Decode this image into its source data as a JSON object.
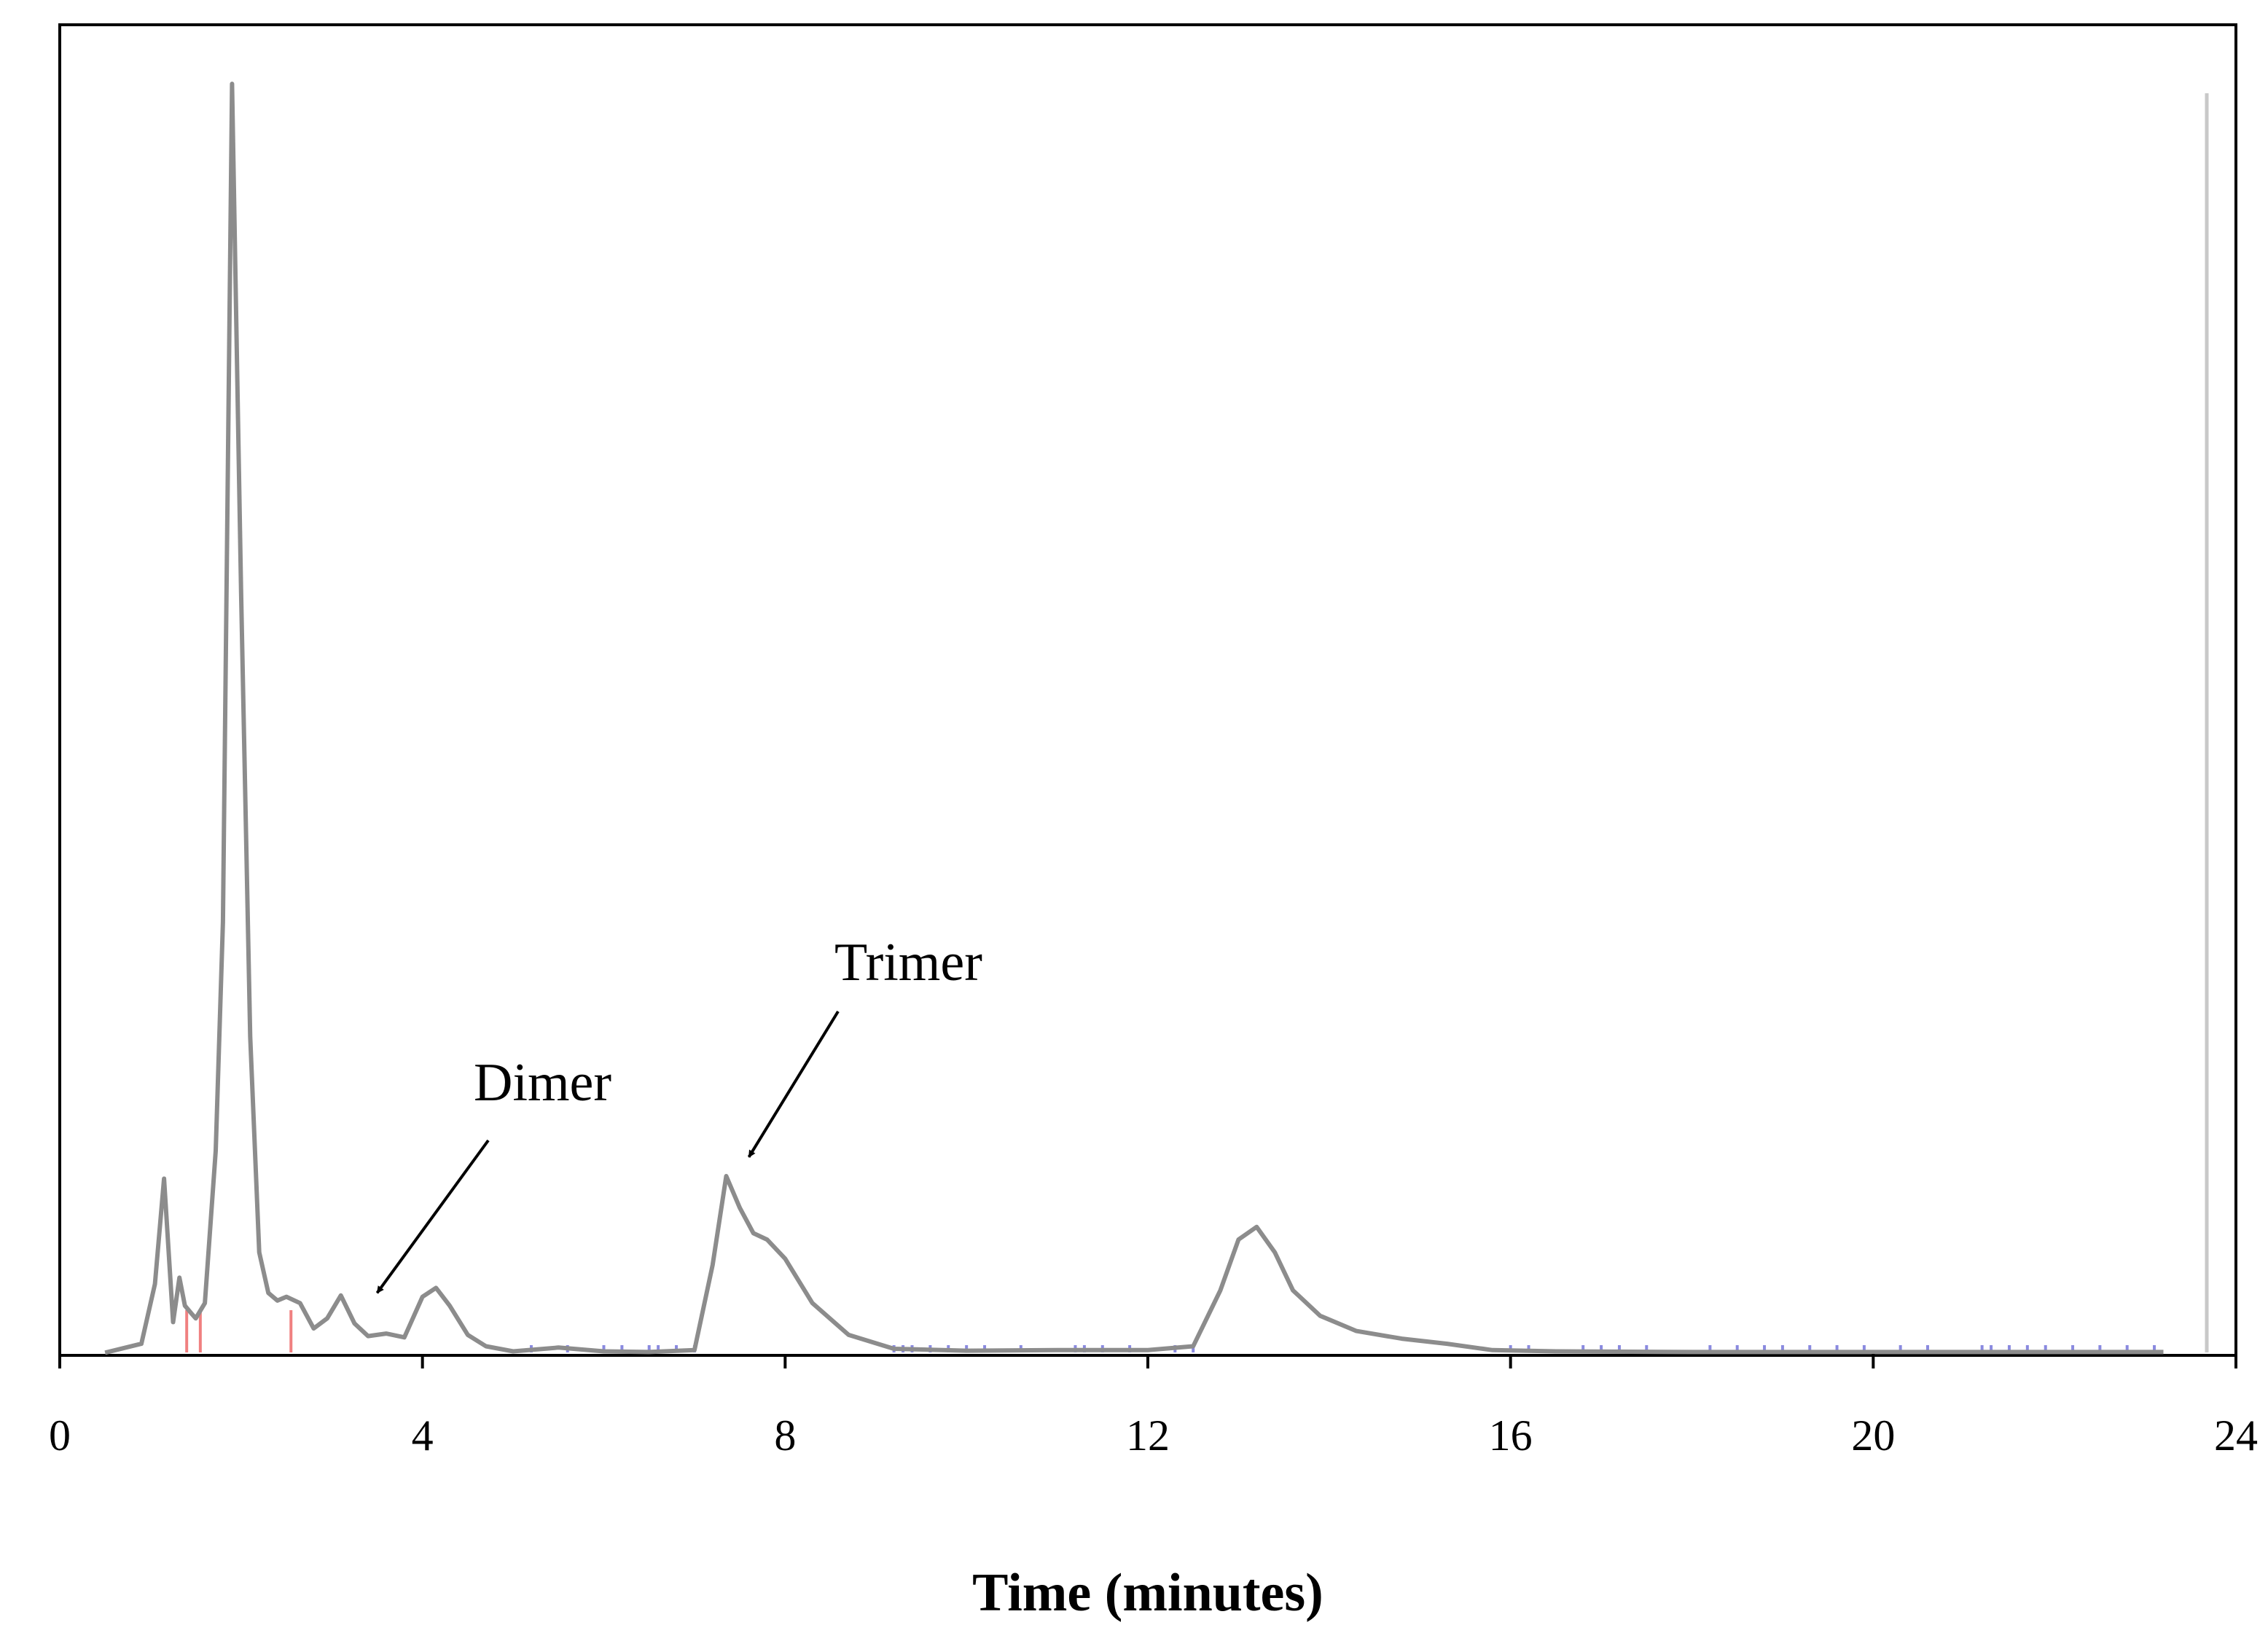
{
  "chart_data": {
    "type": "line",
    "title": "",
    "xlabel": "Time (minutes)",
    "ylabel": "",
    "xlim": [
      0,
      24
    ],
    "ylim": [
      0,
      100
    ],
    "x_ticks": [
      "0",
      "4",
      "8",
      "12",
      "16",
      "20",
      "24"
    ],
    "grid": false,
    "legend": "none",
    "colors": {
      "trace": "#8c8c8c",
      "frame": "#000000",
      "baseline_marks": "#8a8ae0",
      "pink_marks": "#f08080",
      "marker_line": "#c8c8c8"
    },
    "series": [
      {
        "x": [
          0.5,
          0.9,
          1.05,
          1.15,
          1.25,
          1.32,
          1.38,
          1.45,
          1.5,
          1.6,
          1.72,
          1.8,
          1.9,
          2.0,
          2.1,
          2.2,
          2.3,
          2.4,
          2.5,
          2.65,
          2.8,
          2.95,
          3.1,
          3.25,
          3.4,
          3.6,
          3.8,
          4.0,
          4.15,
          4.3,
          4.5,
          4.7,
          5.0,
          5.5,
          6.0,
          6.5,
          7.0,
          7.2,
          7.35,
          7.5,
          7.65,
          7.8,
          8.0,
          8.3,
          8.7,
          9.2,
          10.0,
          11.0,
          12.0,
          12.5,
          12.8,
          13.0,
          13.2,
          13.4,
          13.6,
          13.9,
          14.3,
          14.8,
          15.3,
          15.8,
          16.5,
          18.0,
          20.0,
          22.0,
          23.2
        ],
        "y": [
          0.1,
          0.8,
          5.5,
          13.8,
          2.5,
          6.0,
          3.8,
          3.2,
          2.8,
          4.0,
          16.0,
          34.0,
          100,
          60,
          25,
          8.0,
          4.8,
          4.2,
          4.5,
          4.0,
          2.0,
          2.8,
          4.6,
          2.4,
          1.4,
          1.6,
          1.3,
          4.5,
          5.2,
          3.8,
          1.5,
          0.6,
          0.2,
          0.5,
          0.2,
          0.15,
          0.3,
          7.0,
          14.0,
          11.5,
          9.5,
          9.0,
          7.5,
          4.0,
          1.5,
          0.4,
          0.25,
          0.3,
          0.3,
          0.6,
          5.0,
          9.0,
          10.0,
          8.0,
          5.0,
          3.0,
          1.8,
          1.2,
          0.8,
          0.3,
          0.2,
          0.15,
          0.15,
          0.15,
          0.15
        ]
      }
    ],
    "annotations": [
      {
        "text": "Dimer",
        "x": 3.5,
        "y": 4.8
      },
      {
        "text": "Trimer",
        "x": 7.6,
        "y": 15.5
      }
    ]
  }
}
